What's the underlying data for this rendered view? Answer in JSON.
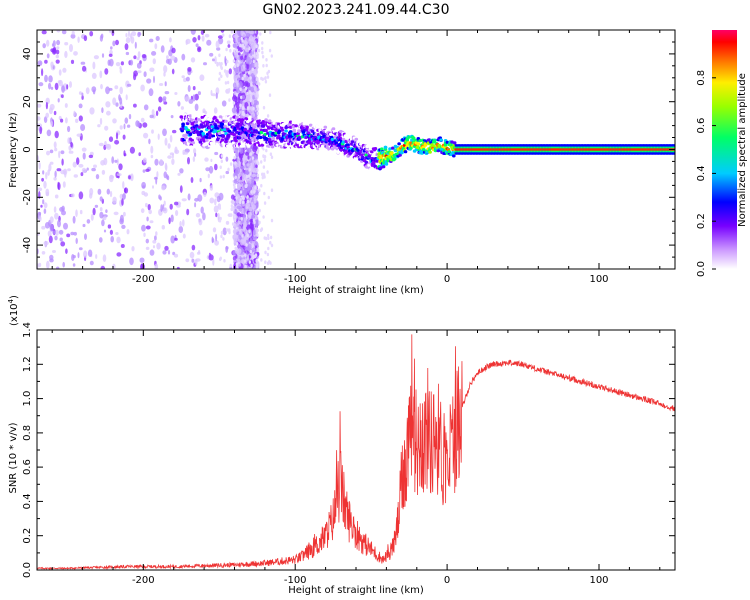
{
  "figure_title": "GN02.2023.241.09.44.C30",
  "colors": {
    "snr_line": "#ee3333",
    "frame": "#000000",
    "colormap": [
      "#ffffff",
      "#cc99ff",
      "#8800ff",
      "#5500ff",
      "#0000ff",
      "#00ccff",
      "#00ff66",
      "#99ff00",
      "#ffee00",
      "#ff6600",
      "#ff0000",
      "#ff0066"
    ]
  },
  "chart_data": [
    {
      "type": "heatmap",
      "title": "GN02.2023.241.09.44.C30",
      "xlabel": "Height of straight line (km)",
      "ylabel": "Frequency (Hz)",
      "xlim": [
        -270,
        150
      ],
      "ylim": [
        -50,
        50
      ],
      "xticks": [
        -200,
        -100,
        0,
        100
      ],
      "yticks": [
        -40,
        -20,
        0,
        20,
        40
      ],
      "xtick_labels": [
        "-200",
        "-100",
        "0",
        "100"
      ],
      "ytick_labels": [
        "-40",
        "-20",
        "0",
        "20",
        "40"
      ],
      "ridge": {
        "x": [
          -175,
          -150,
          -125,
          -100,
          -85,
          -70,
          -60,
          -50,
          -45,
          -40,
          -35,
          -30,
          -25,
          -20,
          -15,
          -10,
          -5,
          0,
          5,
          50,
          100,
          150
        ],
        "y": [
          8,
          8,
          7,
          6,
          5,
          3,
          0,
          -4,
          -4,
          -3,
          -2,
          1,
          3,
          2,
          1,
          1,
          2,
          0.5,
          0,
          0,
          0,
          0
        ]
      },
      "colorbar": {
        "label": "Normalized spectral amplitude",
        "range": [
          0,
          1
        ],
        "ticks": [
          0.0,
          0.2,
          0.4,
          0.6,
          0.8
        ],
        "tick_labels": [
          "0.0",
          "0.2",
          "0.4",
          "0.6",
          "0.8"
        ]
      }
    },
    {
      "type": "line",
      "xlabel": "Height of straight line (km)",
      "ylabel": "SNR (10 * v/v)",
      "scale_note_base": "(x10",
      "scale_note_exp": "4",
      "scale_note_end": ")",
      "xlim": [
        -270,
        150
      ],
      "ylim": [
        0,
        1.4
      ],
      "xticks": [
        -200,
        -100,
        0,
        100
      ],
      "yticks": [
        0.0,
        0.2,
        0.4,
        0.6,
        0.8,
        1.0,
        1.2,
        1.4
      ],
      "xtick_labels": [
        "-200",
        "-100",
        "0",
        "100"
      ],
      "ytick_labels": [
        "0.0",
        "0.2",
        "0.4",
        "0.6",
        "0.8",
        "1.0",
        "1.2",
        "1.4"
      ],
      "series": [
        {
          "x": [
            -270,
            -250,
            -230,
            -210,
            -200,
            -180,
            -160,
            -140,
            -120,
            -110,
            -100,
            -95,
            -90,
            -85,
            -80,
            -75,
            -72,
            -70,
            -68,
            -65,
            -60,
            -55,
            -50,
            -45,
            -42,
            -38,
            -35,
            -32,
            -30,
            -28,
            -26,
            -24,
            -22,
            -20,
            -18,
            -15,
            -12,
            -10,
            -8,
            -5,
            -2,
            0,
            5,
            10,
            15,
            20,
            25,
            30,
            40,
            50,
            60,
            80,
            100,
            120,
            140,
            150
          ],
          "y": [
            0.01,
            0.01,
            0.015,
            0.02,
            0.02,
            0.02,
            0.025,
            0.03,
            0.04,
            0.05,
            0.06,
            0.08,
            0.12,
            0.15,
            0.2,
            0.3,
            0.45,
            0.5,
            0.4,
            0.3,
            0.22,
            0.16,
            0.12,
            0.08,
            0.06,
            0.1,
            0.15,
            0.3,
            0.5,
            0.6,
            0.7,
            1.0,
            0.9,
            0.7,
            0.8,
            0.75,
            0.85,
            0.7,
            0.8,
            0.75,
            0.6,
            0.6,
            0.8,
            0.95,
            1.08,
            1.15,
            1.18,
            1.2,
            1.21,
            1.2,
            1.17,
            1.12,
            1.07,
            1.02,
            0.97,
            0.94
          ]
        }
      ]
    }
  ]
}
